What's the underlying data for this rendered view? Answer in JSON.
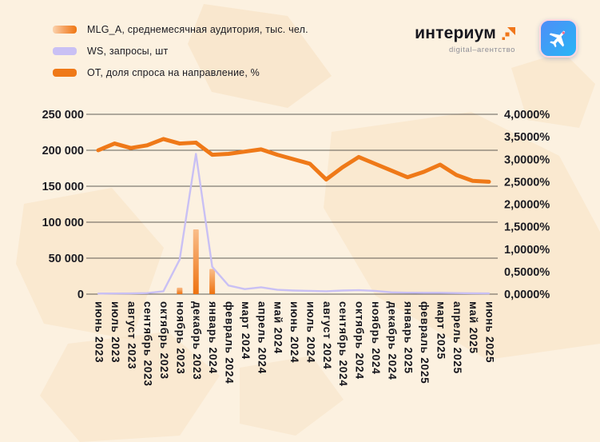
{
  "theme": {
    "background": "#fcf1e0",
    "blob_color": "#f7e1c2",
    "accent_orange": "#ef7918",
    "lavender": "#c9c0f4",
    "text_color": "#1b1b22"
  },
  "branding": {
    "name": "интериум",
    "subtitle": "digital–агентство"
  },
  "legend": {
    "items": [
      {
        "label": "MLG_A, среднемесячная аудитория, тыс. чел.",
        "swatch": {
          "type": "gradient",
          "colors": [
            "#fbd3ae",
            "#f59f5c",
            "#ef7612"
          ]
        }
      },
      {
        "label": "WS, запросы, шт",
        "swatch": {
          "type": "solid",
          "colors": [
            "#c9c0f4"
          ]
        }
      },
      {
        "label": "ОТ, доля спроса на направление, %",
        "swatch": {
          "type": "solid",
          "colors": [
            "#ef7918"
          ]
        }
      }
    ]
  },
  "chart_data": {
    "type": "combo",
    "grid": true,
    "legend_position": "top-left",
    "categories": [
      "июнь 2023",
      "июль 2023",
      "август 2023",
      "сентябрь 2023",
      "октябрь 2023",
      "ноябрь 2023",
      "декабрь 2023",
      "январь 2024",
      "февраль 2024",
      "март 2024",
      "апрель 2024",
      "май 2024",
      "июнь 2024",
      "июль 2024",
      "август 2024",
      "сентябрь 2024",
      "октябрь 2024",
      "ноябрь 2024",
      "декабрь 2024",
      "январь 2025",
      "февраль 2025",
      "март 2025",
      "апрель 2025",
      "май 2025",
      "июнь 2025"
    ],
    "series": [
      {
        "name": "MLG_A, среднемесячная аудитория, тыс. чел.",
        "type": "bar",
        "axis": "left",
        "color_top": "#f9bd8a",
        "color_bottom": "#ee7210",
        "values": [
          0,
          0,
          0,
          0,
          0,
          9000,
          90000,
          35000,
          0,
          0,
          0,
          0,
          0,
          0,
          0,
          0,
          0,
          0,
          0,
          0,
          0,
          0,
          0,
          0,
          0
        ]
      },
      {
        "name": "WS, запросы, шт",
        "type": "line",
        "axis": "left",
        "color": "#c9c0f4",
        "values": [
          800,
          900,
          1000,
          1500,
          4000,
          48000,
          195000,
          38000,
          12000,
          7000,
          9500,
          6000,
          5000,
          4500,
          4000,
          5000,
          5500,
          4500,
          2500,
          2000,
          1800,
          1800,
          1500,
          1200,
          1000
        ]
      },
      {
        "name": "ОТ, доля спроса на направление, %",
        "type": "line",
        "axis": "right",
        "color": "#ef7918",
        "values": [
          3.2,
          3.35,
          3.25,
          3.31,
          3.45,
          3.35,
          3.37,
          3.1,
          3.12,
          3.17,
          3.22,
          3.1,
          3.0,
          2.9,
          2.55,
          2.82,
          3.05,
          2.9,
          2.75,
          2.6,
          2.72,
          2.88,
          2.65,
          2.52,
          2.5
        ]
      }
    ],
    "left_axis": {
      "min": 0,
      "max": 250000,
      "tick_step": 50000,
      "tick_labels": [
        "0",
        "50 000",
        "100 000",
        "150 000",
        "200 000",
        "250 000"
      ]
    },
    "right_axis": {
      "min": 0,
      "max": 4,
      "tick_step": 0.5,
      "tick_labels": [
        "0,0000%",
        "0,5000%",
        "1,0000%",
        "1,5000%",
        "2,0000%",
        "2,5000%",
        "3,0000%",
        "3,5000%",
        "4,0000%"
      ]
    }
  }
}
